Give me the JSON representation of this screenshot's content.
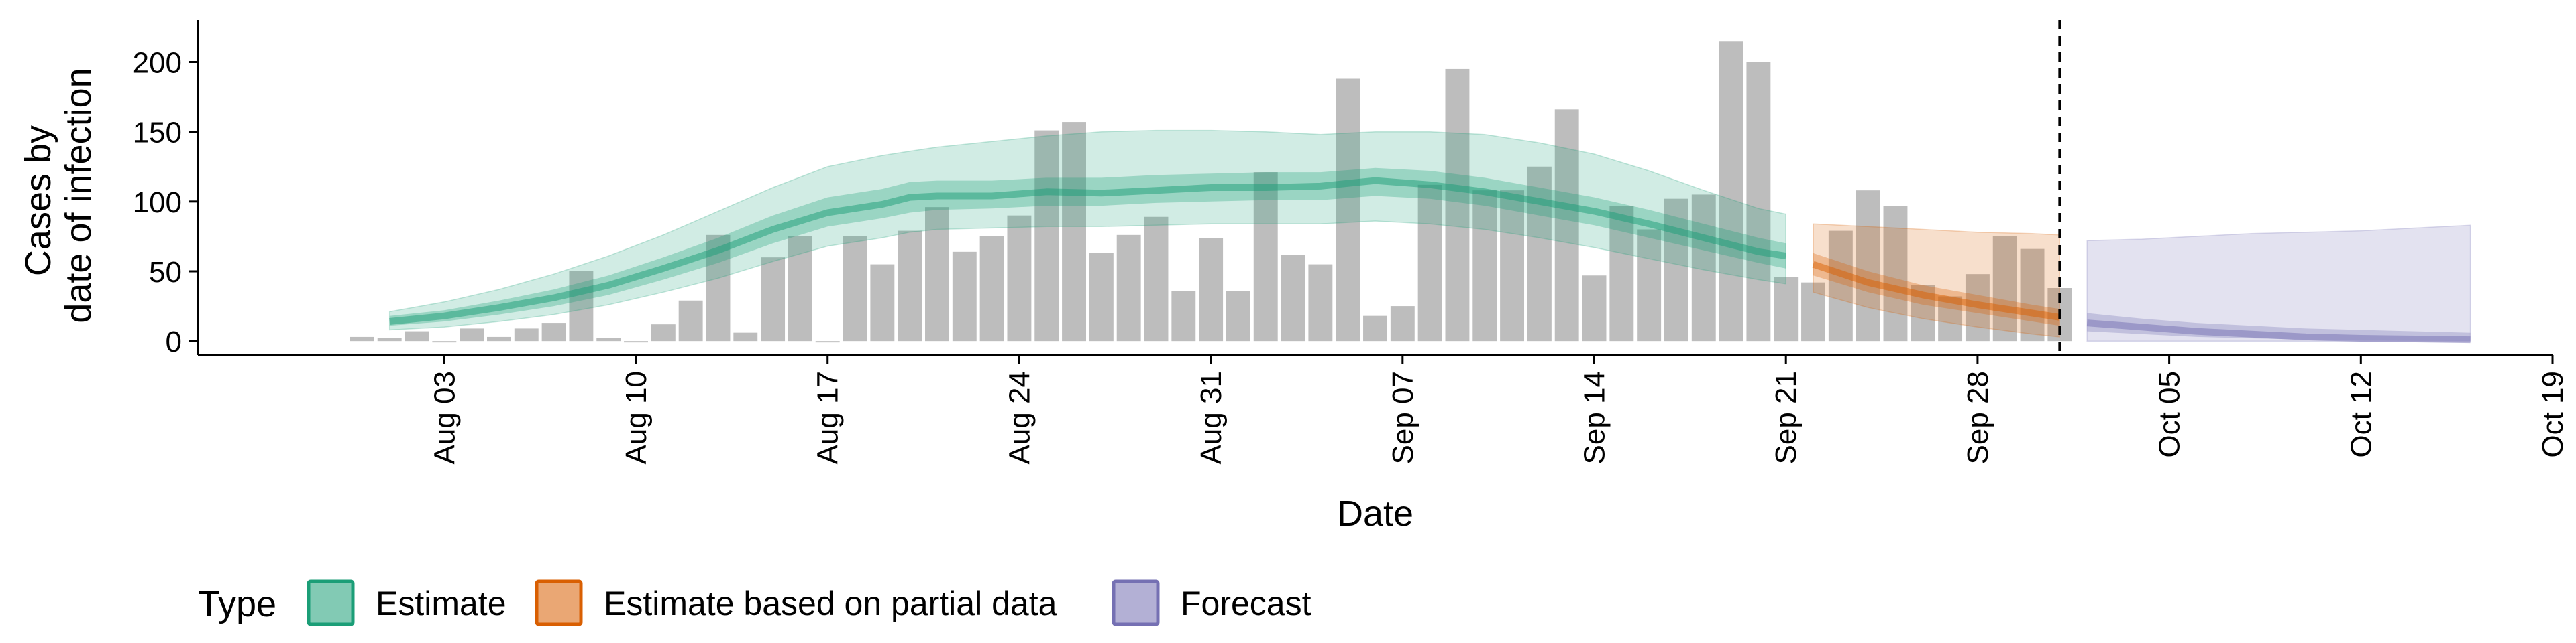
{
  "chart_data": {
    "type": "bar",
    "xlabel": "Date",
    "ylabel": [
      "Cases by",
      "date of infection"
    ],
    "x_tick_labels": [
      "Aug 03",
      "Aug 10",
      "Aug 17",
      "Aug 24",
      "Aug 31",
      "Sep 07",
      "Sep 14",
      "Sep 21",
      "Sep 28",
      "Oct 05",
      "Oct 12",
      "Oct 19"
    ],
    "x_tick_dates": [
      "2020-08-03",
      "2020-08-10",
      "2020-08-17",
      "2020-08-24",
      "2020-08-31",
      "2020-09-07",
      "2020-09-14",
      "2020-09-21",
      "2020-09-28",
      "2020-10-05",
      "2020-10-12",
      "2020-10-19"
    ],
    "x_range": [
      "2020-07-25",
      "2020-10-19"
    ],
    "y_ticks": [
      0,
      50,
      100,
      150,
      200
    ],
    "ylim": [
      -10,
      230
    ],
    "reference_line_date": "2020-10-01",
    "reported_cases": {
      "dates": [
        "2020-07-31",
        "2020-08-01",
        "2020-08-02",
        "2020-08-03",
        "2020-08-04",
        "2020-08-05",
        "2020-08-06",
        "2020-08-07",
        "2020-08-08",
        "2020-08-09",
        "2020-08-10",
        "2020-08-11",
        "2020-08-12",
        "2020-08-13",
        "2020-08-14",
        "2020-08-15",
        "2020-08-16",
        "2020-08-17",
        "2020-08-18",
        "2020-08-19",
        "2020-08-20",
        "2020-08-21",
        "2020-08-22",
        "2020-08-23",
        "2020-08-24",
        "2020-08-25",
        "2020-08-26",
        "2020-08-27",
        "2020-08-28",
        "2020-08-29",
        "2020-08-30",
        "2020-08-31",
        "2020-09-01",
        "2020-09-02",
        "2020-09-03",
        "2020-09-04",
        "2020-09-05",
        "2020-09-06",
        "2020-09-07",
        "2020-09-08",
        "2020-09-09",
        "2020-09-10",
        "2020-09-11",
        "2020-09-12",
        "2020-09-13",
        "2020-09-14",
        "2020-09-15",
        "2020-09-16",
        "2020-09-17",
        "2020-09-18",
        "2020-09-19",
        "2020-09-20",
        "2020-09-21",
        "2020-09-22",
        "2020-09-23",
        "2020-09-24",
        "2020-09-25",
        "2020-09-26",
        "2020-09-27",
        "2020-09-28",
        "2020-09-29",
        "2020-09-30",
        "2020-10-01"
      ],
      "values": [
        3,
        2,
        7,
        0,
        9,
        3,
        9,
        13,
        50,
        2,
        0,
        12,
        29,
        76,
        6,
        60,
        75,
        0,
        75,
        55,
        79,
        96,
        64,
        75,
        90,
        151,
        157,
        63,
        76,
        89,
        36,
        74,
        36,
        121,
        62,
        55,
        188,
        18,
        25,
        112,
        195,
        108,
        108,
        125,
        166,
        47,
        97,
        80,
        102,
        105,
        215,
        200,
        46,
        42,
        79,
        108,
        97,
        40,
        32,
        48,
        75,
        66,
        38
      ]
    },
    "series": [
      {
        "name": "Estimate",
        "color": "#1b9e77",
        "dates": [
          "2020-08-01",
          "2020-08-03",
          "2020-08-05",
          "2020-08-07",
          "2020-08-09",
          "2020-08-11",
          "2020-08-13",
          "2020-08-15",
          "2020-08-17",
          "2020-08-19",
          "2020-08-20",
          "2020-08-21",
          "2020-08-23",
          "2020-08-25",
          "2020-08-27",
          "2020-08-29",
          "2020-08-31",
          "2020-09-02",
          "2020-09-04",
          "2020-09-06",
          "2020-09-08",
          "2020-09-10",
          "2020-09-12",
          "2020-09-14",
          "2020-09-16",
          "2020-09-18",
          "2020-09-20",
          "2020-09-21"
        ],
        "median": [
          14,
          18,
          24,
          31,
          40,
          52,
          65,
          80,
          92,
          98,
          103,
          104,
          104,
          107,
          106,
          108,
          110,
          110,
          111,
          115,
          112,
          107,
          100,
          93,
          84,
          74,
          64,
          61
        ],
        "inner_lower": [
          11,
          14,
          19,
          25,
          33,
          44,
          56,
          70,
          82,
          88,
          92,
          94,
          95,
          97,
          97,
          99,
          100,
          101,
          101,
          104,
          102,
          97,
          90,
          83,
          74,
          65,
          56,
          52
        ],
        "inner_upper": [
          18,
          22,
          29,
          37,
          47,
          60,
          74,
          90,
          103,
          109,
          114,
          115,
          115,
          117,
          117,
          119,
          120,
          121,
          121,
          124,
          122,
          117,
          110,
          103,
          94,
          84,
          74,
          70
        ],
        "outer_lower": [
          8,
          10,
          14,
          19,
          26,
          35,
          45,
          57,
          68,
          74,
          78,
          80,
          81,
          82,
          82,
          83,
          84,
          84,
          84,
          86,
          84,
          80,
          74,
          67,
          59,
          51,
          44,
          41
        ],
        "outer_upper": [
          21,
          28,
          37,
          48,
          61,
          76,
          93,
          110,
          125,
          133,
          136,
          139,
          143,
          147,
          150,
          151,
          151,
          150,
          148,
          150,
          150,
          148,
          142,
          134,
          122,
          108,
          95,
          91
        ]
      },
      {
        "name": "Estimate based on partial data",
        "color": "#d95f02",
        "dates": [
          "2020-09-22",
          "2020-09-24",
          "2020-09-26",
          "2020-09-28",
          "2020-09-30",
          "2020-10-01"
        ],
        "median": [
          55,
          42,
          33,
          26,
          20,
          17
        ],
        "inner_lower": [
          47,
          35,
          26,
          20,
          14,
          11
        ],
        "inner_upper": [
          63,
          50,
          40,
          33,
          26,
          23
        ],
        "outer_lower": [
          35,
          24,
          16,
          10,
          5,
          3
        ],
        "outer_upper": [
          84,
          82,
          80,
          78,
          77,
          76
        ]
      },
      {
        "name": "Forecast",
        "color": "#7570b3",
        "dates": [
          "2020-10-02",
          "2020-10-04",
          "2020-10-06",
          "2020-10-08",
          "2020-10-10",
          "2020-10-12",
          "2020-10-14",
          "2020-10-16"
        ],
        "median": [
          13,
          10,
          7,
          5,
          3,
          2,
          1.5,
          1
        ],
        "inner_lower": [
          7,
          5,
          3,
          2,
          1,
          0.5,
          0.3,
          0.2
        ],
        "inner_upper": [
          20,
          16,
          13,
          11,
          9,
          8,
          7,
          6
        ],
        "outer_lower": [
          0,
          0,
          0,
          0,
          0,
          0,
          0,
          0
        ],
        "outer_upper": [
          72,
          73,
          75,
          77,
          78,
          79,
          81,
          83
        ]
      }
    ],
    "legend": {
      "title": "Type",
      "position": "bottom",
      "items": [
        "Estimate",
        "Estimate based on partial data",
        "Forecast"
      ]
    },
    "grid": false
  }
}
